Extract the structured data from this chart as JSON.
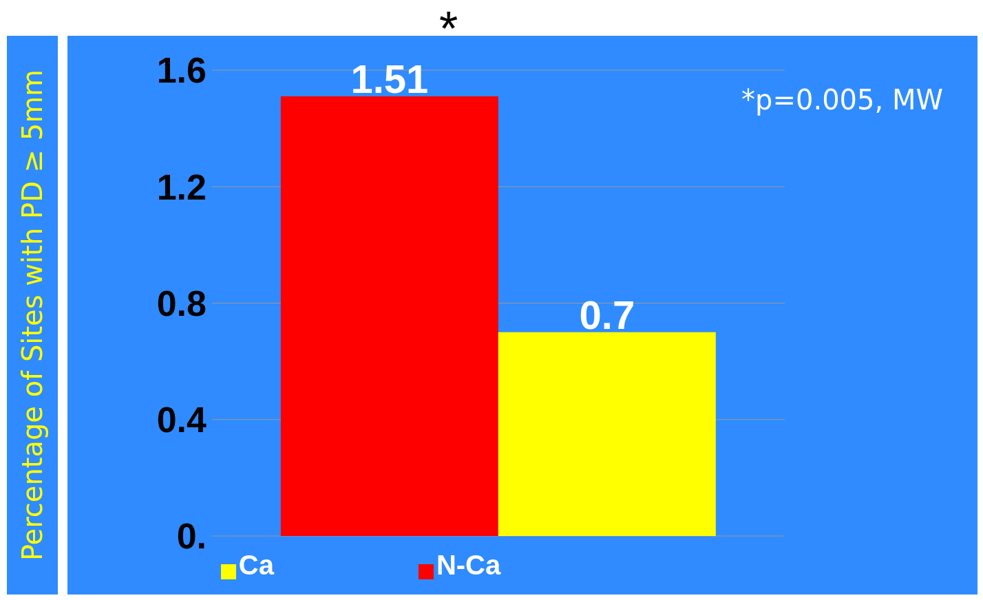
{
  "chart_data": {
    "type": "bar",
    "ylabel": "Percentage of Sites with PD ≥ 5mm",
    "categories": [
      null
    ],
    "series": [
      {
        "name": "N-Ca",
        "color": "#ff0000",
        "values": [
          1.51
        ]
      },
      {
        "name": "Ca",
        "color": "#ffff00",
        "values": [
          0.7
        ]
      }
    ],
    "ylim": [
      0,
      1.6
    ],
    "yticks": [
      {
        "value": 0,
        "label": "0."
      },
      0.4,
      0.8,
      1.2,
      1.6
    ],
    "grid": "y",
    "legend": "bottom",
    "data_labels": true,
    "annotations": [
      "*",
      "*p=0.005, MW"
    ]
  }
}
